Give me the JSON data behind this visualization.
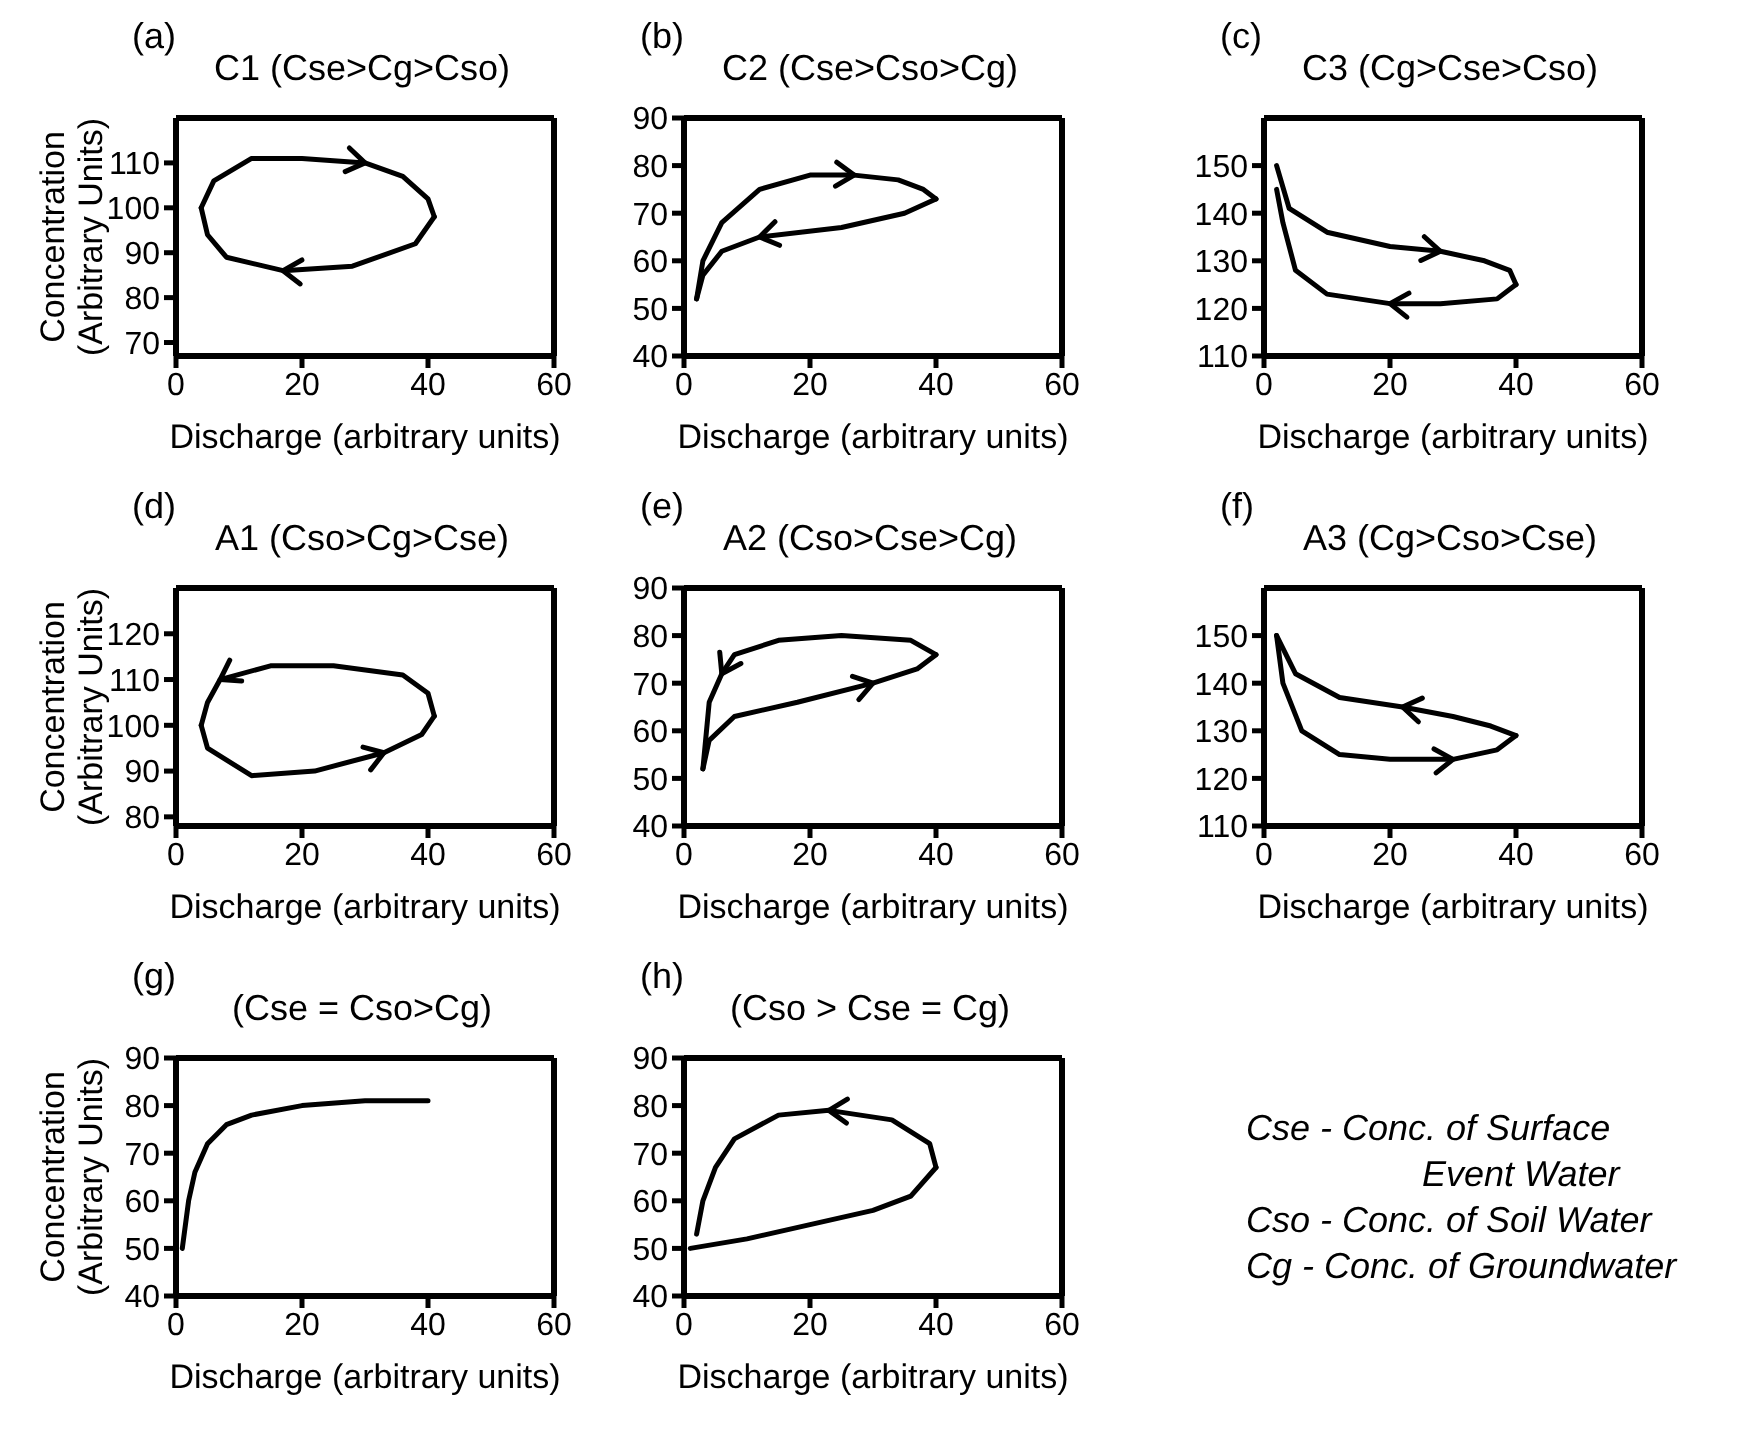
{
  "chart_data": [
    {
      "type": "line",
      "title": "C1 (Cse>Cg>Cso)",
      "annotations": [
        "(a)"
      ],
      "xlabel": "Discharge (arbitrary units)",
      "ylabel": "Concentration (Arbitrary Units)",
      "xlim": [
        0,
        60
      ],
      "xticks": [
        0,
        20,
        40,
        60
      ],
      "ylim": [
        67,
        120
      ],
      "yticks": [
        70,
        80,
        90,
        100,
        110
      ],
      "series": [
        {
          "color": "#000000",
          "x": [
            4,
            6,
            12,
            20,
            30,
            36,
            40,
            41
          ],
          "values": [
            100,
            106,
            111,
            111,
            110,
            107,
            102,
            98
          ]
        },
        {
          "color": "#000000",
          "x": [
            41,
            38,
            28,
            17,
            8,
            5,
            4
          ],
          "values": [
            98,
            92,
            87,
            86,
            89,
            94,
            100
          ]
        }
      ]
    },
    {
      "type": "line",
      "title": "C2 (Cse>Cso>Cg)",
      "annotations": [
        "(b)"
      ],
      "xlabel": "Discharge (arbitrary units)",
      "xlim": [
        0,
        60
      ],
      "xticks": [
        0,
        20,
        40,
        60
      ],
      "ylim": [
        40,
        90
      ],
      "yticks": [
        40,
        50,
        60,
        70,
        80,
        90
      ],
      "series": [
        {
          "color": "#000000",
          "x": [
            2,
            3,
            6,
            12,
            20,
            27,
            34,
            38,
            40
          ],
          "values": [
            52,
            60,
            68,
            75,
            78,
            78,
            77,
            75,
            73
          ]
        },
        {
          "color": "#000000",
          "x": [
            40,
            35,
            25,
            12,
            6,
            3,
            2
          ],
          "values": [
            73,
            70,
            67,
            65,
            62,
            57,
            52
          ]
        }
      ]
    },
    {
      "type": "line",
      "title": "C3 (Cg>Cse>Cso)",
      "annotations": [
        "(c)"
      ],
      "xlabel": "Discharge (arbitrary units)",
      "xlim": [
        0,
        60
      ],
      "xticks": [
        0,
        20,
        40,
        60
      ],
      "ylim": [
        110,
        160
      ],
      "yticks": [
        110,
        120,
        130,
        140,
        150
      ],
      "series": [
        {
          "color": "#000000",
          "x": [
            2,
            4,
            10,
            20,
            28,
            35,
            39,
            40
          ],
          "values": [
            150,
            141,
            136,
            133,
            132,
            130,
            128,
            125
          ]
        },
        {
          "color": "#000000",
          "x": [
            40,
            37,
            28,
            20,
            10,
            5,
            3,
            2
          ],
          "values": [
            125,
            122,
            121,
            121,
            123,
            128,
            138,
            145
          ]
        }
      ]
    },
    {
      "type": "line",
      "title": "A1 (Cso>Cg>Cse)",
      "annotations": [
        "(d)"
      ],
      "xlabel": "Discharge (arbitrary units)",
      "ylabel": "Concentration (Arbitrary Units)",
      "xlim": [
        0,
        60
      ],
      "xticks": [
        0,
        20,
        40,
        60
      ],
      "ylim": [
        78,
        130
      ],
      "yticks": [
        80,
        90,
        100,
        110,
        120
      ],
      "series": [
        {
          "color": "#000000",
          "x": [
            4,
            5,
            12,
            22,
            33,
            39,
            41
          ],
          "values": [
            100,
            95,
            89,
            90,
            94,
            98,
            102
          ]
        },
        {
          "color": "#000000",
          "x": [
            41,
            40,
            36,
            25,
            15,
            7,
            5,
            4
          ],
          "values": [
            102,
            107,
            111,
            113,
            113,
            110,
            105,
            100
          ]
        }
      ]
    },
    {
      "type": "line",
      "title": "A2 (Cso>Cse>Cg)",
      "annotations": [
        "(e)"
      ],
      "xlabel": "Discharge (arbitrary units)",
      "xlim": [
        0,
        60
      ],
      "xticks": [
        0,
        20,
        40,
        60
      ],
      "ylim": [
        40,
        90
      ],
      "yticks": [
        40,
        50,
        60,
        70,
        80,
        90
      ],
      "series": [
        {
          "color": "#000000",
          "x": [
            3,
            4,
            8,
            18,
            30,
            37,
            40
          ],
          "values": [
            52,
            58,
            63,
            66,
            70,
            73,
            76
          ]
        },
        {
          "color": "#000000",
          "x": [
            40,
            36,
            25,
            15,
            8,
            6,
            4,
            3
          ],
          "values": [
            76,
            79,
            80,
            79,
            76,
            72,
            66,
            52
          ]
        }
      ]
    },
    {
      "type": "line",
      "title": "A3 (Cg>Cso>Cse)",
      "annotations": [
        "(f)"
      ],
      "xlabel": "Discharge (arbitrary units)",
      "xlim": [
        0,
        60
      ],
      "xticks": [
        0,
        20,
        40,
        60
      ],
      "ylim": [
        110,
        160
      ],
      "yticks": [
        110,
        120,
        130,
        140,
        150
      ],
      "series": [
        {
          "color": "#000000",
          "x": [
            2,
            3,
            6,
            12,
            20,
            30,
            37,
            40
          ],
          "values": [
            150,
            140,
            130,
            125,
            124,
            124,
            126,
            129
          ]
        },
        {
          "color": "#000000",
          "x": [
            40,
            36,
            30,
            22,
            12,
            5,
            2
          ],
          "values": [
            129,
            131,
            133,
            135,
            137,
            142,
            150
          ]
        }
      ]
    },
    {
      "type": "line",
      "title": "(Cse = Cso>Cg)",
      "annotations": [
        "(g)"
      ],
      "xlabel": "Discharge (arbitrary units)",
      "ylabel": "Concentration (Arbitrary Units)",
      "xlim": [
        0,
        60
      ],
      "xticks": [
        0,
        20,
        40,
        60
      ],
      "ylim": [
        40,
        90
      ],
      "yticks": [
        40,
        50,
        60,
        70,
        80,
        90
      ],
      "series": [
        {
          "color": "#000000",
          "x": [
            1,
            2,
            3,
            5,
            8,
            12,
            20,
            30,
            40
          ],
          "values": [
            50,
            60,
            66,
            72,
            76,
            78,
            80,
            81,
            81
          ]
        }
      ]
    },
    {
      "type": "line",
      "title": "(Cso > Cse = Cg)",
      "annotations": [
        "(h)"
      ],
      "xlabel": "Discharge (arbitrary units)",
      "xlim": [
        0,
        60
      ],
      "xticks": [
        0,
        20,
        40,
        60
      ],
      "ylim": [
        40,
        90
      ],
      "yticks": [
        40,
        50,
        60,
        70,
        80,
        90
      ],
      "series": [
        {
          "color": "#000000",
          "x": [
            1,
            10,
            20,
            30,
            36,
            40
          ],
          "values": [
            50,
            52,
            55,
            58,
            61,
            67
          ]
        },
        {
          "color": "#000000",
          "x": [
            40,
            39,
            33,
            23,
            15,
            8,
            5,
            3,
            2
          ],
          "values": [
            67,
            72,
            77,
            79,
            78,
            73,
            67,
            60,
            53
          ]
        }
      ]
    },
    {
      "type": "other",
      "annotations": [
        "Cse - Conc. of Surface Event Water",
        "Cso - Conc. of Soil Water",
        "Cg -   Conc. of Groundwater"
      ]
    }
  ]
}
